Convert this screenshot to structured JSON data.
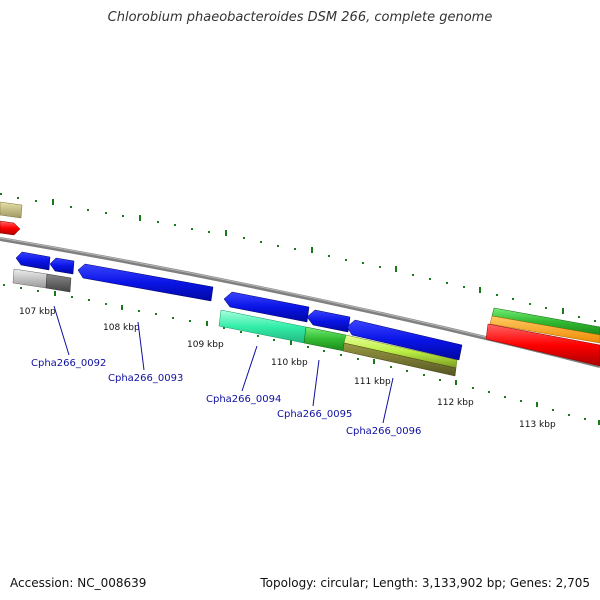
{
  "title": "Chlorobium phaeobacteroides DSM 266, complete genome",
  "footer": {
    "accession": "Accession: NC_008639",
    "summary": "Topology: circular; Length: 3,133,902 bp; Genes: 2,705"
  },
  "ticks": [
    "107 kbp",
    "108 kbp",
    "109 kbp",
    "110 kbp",
    "111 kbp",
    "112 kbp",
    "113 kbp"
  ],
  "genes": [
    "Cpha266_0092",
    "Cpha266_0093",
    "Cpha266_0094",
    "Cpha266_0095",
    "Cpha266_0096"
  ],
  "colors": {
    "gene_blue": "#0a14e6",
    "backbone": "#808080",
    "tick_green": "#1a7a1a",
    "label_blue": "#1010a0",
    "red": "#ff0000",
    "orange": "#ff9900",
    "green": "#33cc33",
    "aqua": "#33eeaa",
    "lime": "#bbee44",
    "olive_tan": "#c8c080",
    "grey": "#b0b0b0"
  }
}
